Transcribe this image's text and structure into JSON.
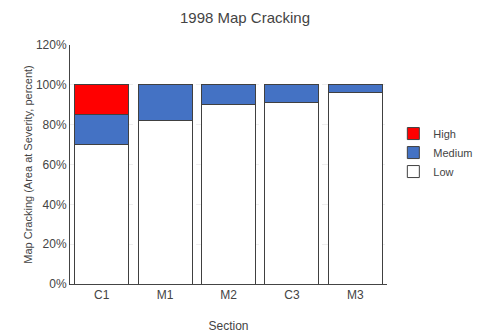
{
  "chart_data": {
    "type": "bar",
    "stacked": true,
    "title": "1998 Map Cracking",
    "xlabel": "Section",
    "ylabel": "Map Cracking (Area at Severity, percent)",
    "categories": [
      "C1",
      "M1",
      "M2",
      "C3",
      "M3"
    ],
    "series": [
      {
        "name": "Low",
        "color": "#ffffff",
        "values": [
          0.7,
          0.82,
          0.9,
          0.91,
          0.96
        ]
      },
      {
        "name": "Medium",
        "color": "#4472c4",
        "values": [
          0.15,
          0.18,
          0.1,
          0.09,
          0.04
        ]
      },
      {
        "name": "High",
        "color": "#ff0000",
        "values": [
          0.15,
          0.0,
          0.0,
          0.0,
          0.0
        ]
      }
    ],
    "ylim": [
      0.0,
      1.2
    ],
    "yticks": [
      {
        "value": 0.0,
        "label": "0%"
      },
      {
        "value": 0.2,
        "label": "20%"
      },
      {
        "value": 0.4,
        "label": "40%"
      },
      {
        "value": 0.6,
        "label": "60%"
      },
      {
        "value": 0.8,
        "label": "80%"
      },
      {
        "value": 1.0,
        "label": "100%"
      },
      {
        "value": 1.2,
        "label": "120%"
      }
    ],
    "grid": true,
    "legend": "right"
  }
}
